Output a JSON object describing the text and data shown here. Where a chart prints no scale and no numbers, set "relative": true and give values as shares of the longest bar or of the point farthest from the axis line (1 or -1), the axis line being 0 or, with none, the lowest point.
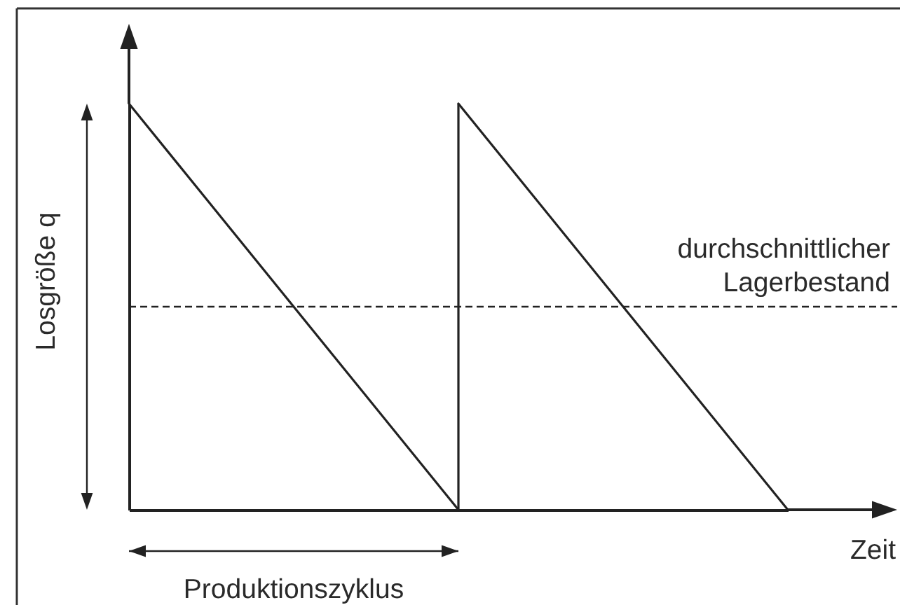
{
  "chart_data": {
    "type": "line",
    "relative": true,
    "categories": [
      null,
      null,
      null
    ],
    "series": [
      {
        "color": "#222222",
        "values": [
          1,
          0,
          null
        ]
      },
      {
        "color": "#222222",
        "values": [
          null,
          1,
          0
        ]
      }
    ],
    "xlabel": "Zeit",
    "ylabel": "Losgröße q",
    "ref_lines": [
      {
        "axis": "y",
        "value": 0.5,
        "label": "durchschnittlicher\nLagerbestand",
        "line_style": "dashed"
      }
    ],
    "annotations": [
      "Produktionszyklus"
    ]
  }
}
